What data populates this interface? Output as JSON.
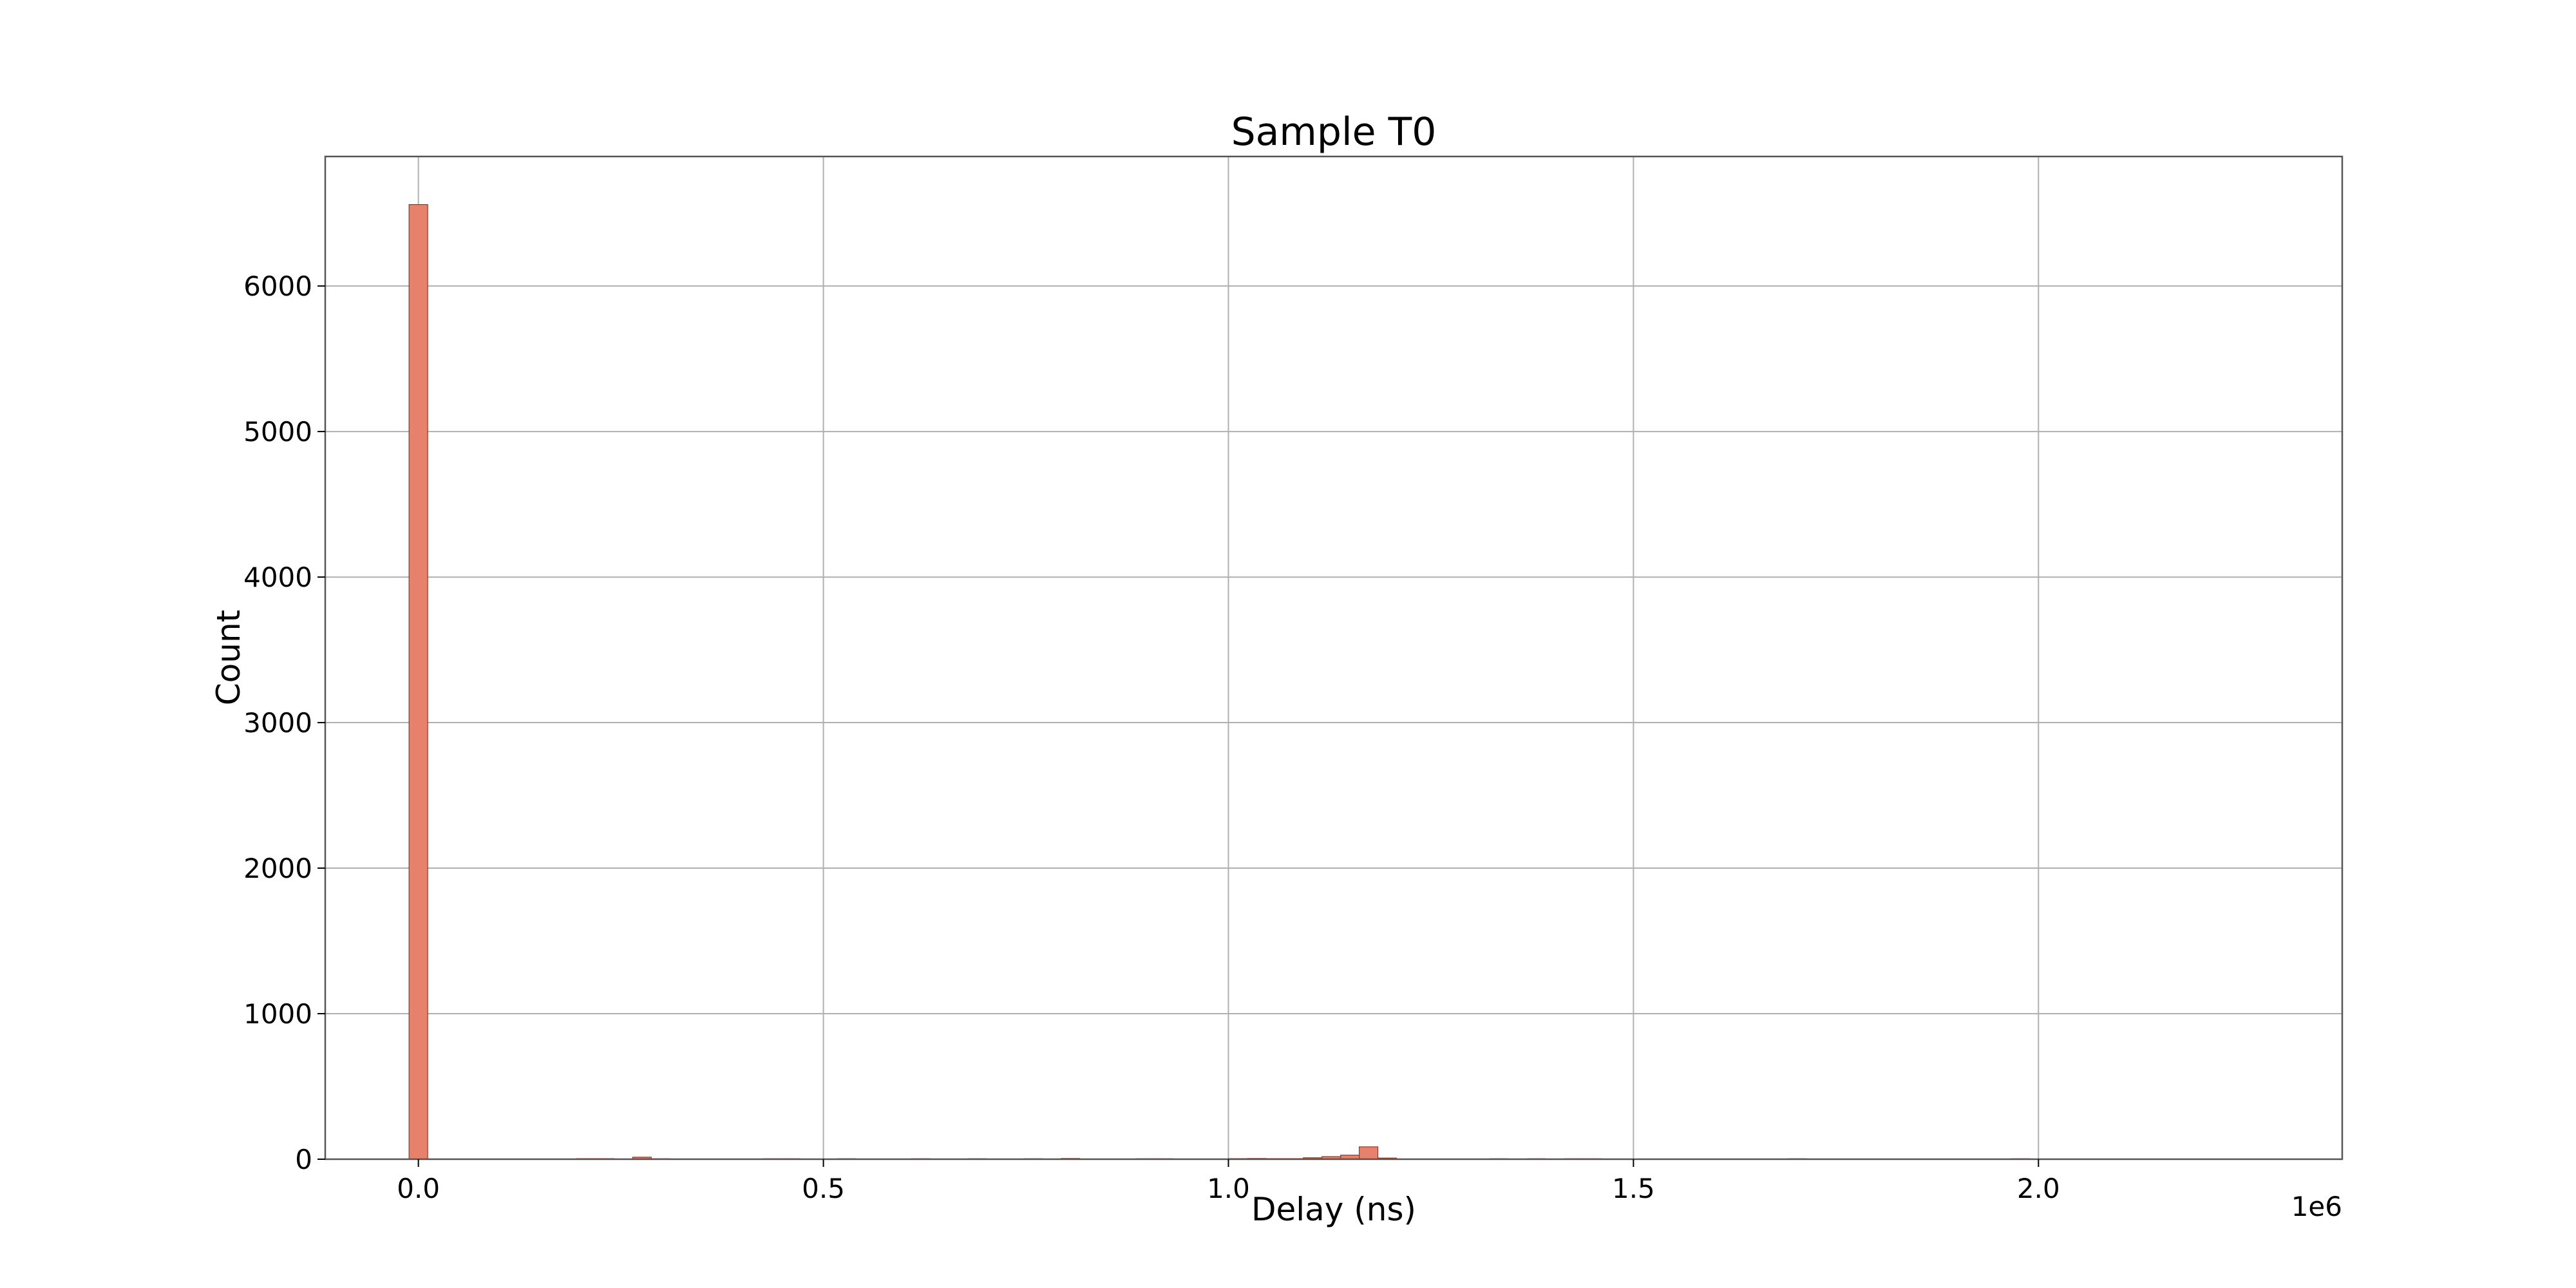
{
  "chart_data": {
    "type": "bar",
    "title": "Sample T0",
    "xlabel": "Delay (ns)",
    "ylabel": "Count",
    "x_offset_label": "1e6",
    "xlim": [
      -0.115,
      2.375
    ],
    "ylim": [
      0,
      6890
    ],
    "grid": true,
    "bar_color": "#e8816c",
    "edge_color": "#8b3a2c",
    "bin_width": 0.023,
    "x_ticks": [
      {
        "value": 0.0,
        "label": "0.0"
      },
      {
        "value": 0.5,
        "label": "0.5"
      },
      {
        "value": 1.0,
        "label": "1.0"
      },
      {
        "value": 1.5,
        "label": "1.5"
      },
      {
        "value": 2.0,
        "label": "2.0"
      }
    ],
    "y_ticks": [
      {
        "value": 0,
        "label": "0"
      },
      {
        "value": 1000,
        "label": "1000"
      },
      {
        "value": 2000,
        "label": "2000"
      },
      {
        "value": 3000,
        "label": "3000"
      },
      {
        "value": 4000,
        "label": "4000"
      },
      {
        "value": 5000,
        "label": "5000"
      },
      {
        "value": 6000,
        "label": "6000"
      }
    ],
    "bins": [
      {
        "x": 0.0,
        "count": 6560
      },
      {
        "x": 0.207,
        "count": 4
      },
      {
        "x": 0.23,
        "count": 4
      },
      {
        "x": 0.276,
        "count": 14
      },
      {
        "x": 0.299,
        "count": 3
      },
      {
        "x": 0.437,
        "count": 3
      },
      {
        "x": 0.46,
        "count": 3
      },
      {
        "x": 0.529,
        "count": 3
      },
      {
        "x": 0.62,
        "count": 3
      },
      {
        "x": 0.69,
        "count": 3
      },
      {
        "x": 0.759,
        "count": 3
      },
      {
        "x": 0.805,
        "count": 5
      },
      {
        "x": 0.897,
        "count": 3
      },
      {
        "x": 0.92,
        "count": 3
      },
      {
        "x": 1.012,
        "count": 4
      },
      {
        "x": 1.035,
        "count": 5
      },
      {
        "x": 1.058,
        "count": 4
      },
      {
        "x": 1.081,
        "count": 4
      },
      {
        "x": 1.104,
        "count": 10
      },
      {
        "x": 1.127,
        "count": 18
      },
      {
        "x": 1.15,
        "count": 28
      },
      {
        "x": 1.173,
        "count": 85
      },
      {
        "x": 1.196,
        "count": 8
      },
      {
        "x": 1.334,
        "count": 3
      },
      {
        "x": 1.38,
        "count": 3
      },
      {
        "x": 1.426,
        "count": 3
      },
      {
        "x": 1.449,
        "count": 3
      },
      {
        "x": 1.702,
        "count": 3
      },
      {
        "x": 1.978,
        "count": 3
      }
    ]
  }
}
